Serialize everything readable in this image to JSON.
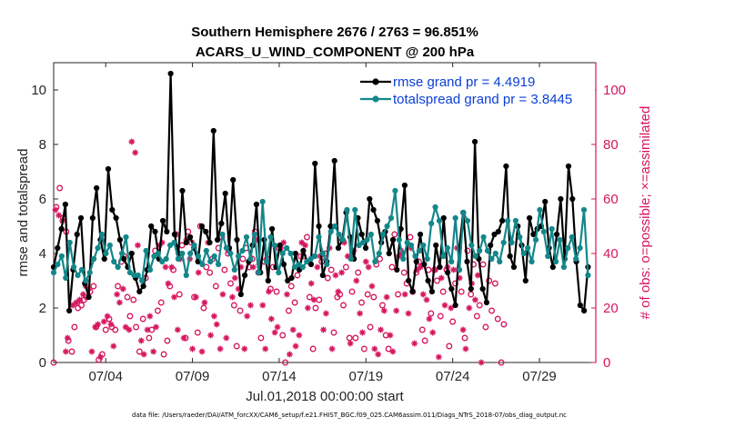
{
  "chart_data": {
    "type": "line",
    "title_line1": "Southern Hemisphere 2676 / 2763 = 96.851%",
    "title_line2": "ACARS_U_WIND_COMPONENT @ 200 hPa",
    "xlabel": "Jul.01,2018 00:00:00 start",
    "ylabel_left": "rmse and totalspread",
    "ylabel_right": "# of obs: o=possible; ×=assimilated",
    "x_tick_labels": [
      "07/04",
      "07/09",
      "07/14",
      "07/19",
      "07/24",
      "07/29"
    ],
    "x_tick_positions": [
      4,
      9,
      14,
      19,
      24,
      29
    ],
    "xlim": [
      1,
      32.25
    ],
    "ylim_left": [
      0,
      11
    ],
    "ylim_right": [
      0,
      110
    ],
    "y_ticks_left": [
      "0",
      "2",
      "4",
      "6",
      "8",
      "10"
    ],
    "y_ticks_right": [
      "0",
      "20",
      "40",
      "60",
      "80",
      "100"
    ],
    "grid": false,
    "legend": "top-right",
    "series": [
      {
        "name": "rmse grand pr = 4.4919",
        "color": "#000000",
        "axis": "left",
        "values": [
          3.5,
          4.2,
          4.9,
          5.8,
          1.9,
          3.4,
          4.7,
          5.3,
          2.9,
          2.4,
          5.3,
          6.4,
          4.5,
          3.8,
          7.1,
          5.6,
          5.3,
          4.5,
          3.8,
          3.5,
          4.0,
          3.1,
          2.6,
          2.8,
          3.4,
          5.0,
          4.8,
          3.8,
          5.2,
          4.8,
          10.6,
          4.7,
          4.0,
          6.3,
          4.4,
          4.6,
          4.2,
          3.7,
          5.0,
          4.8,
          4.4,
          8.5,
          4.5,
          5.1,
          6.2,
          4.2,
          6.7,
          4.5,
          2.5,
          3.2,
          3.7,
          4.3,
          5.8,
          3.3,
          4.5,
          3.0,
          4.9,
          3.5,
          4.3,
          3.6,
          3.0,
          3.1,
          4.0,
          3.4,
          4.1,
          3.7,
          3.6,
          7.3,
          5.0,
          3.2,
          3.7,
          5.0,
          7.4,
          4.2,
          4.5,
          5.5,
          4.6,
          3.8,
          5.3,
          4.7,
          4.2,
          6.0,
          5.6,
          5.2,
          4.4,
          4.8,
          4.0,
          4.5,
          3.4,
          4.9,
          6.5,
          3.0,
          2.6,
          3.7,
          4.7,
          3.6,
          3.0,
          2.6,
          4.3,
          3.5,
          5.3,
          3.3,
          2.7,
          2.1,
          4.2,
          5.5,
          3.7,
          2.7,
          8.1,
          3.8,
          2.7,
          2.2,
          4.3,
          4.7,
          4.8,
          5.2,
          7.2,
          3.9,
          3.5,
          5.0,
          4.3,
          3.0,
          5.3,
          4.7,
          4.9,
          5.0,
          5.9,
          4.2,
          3.5,
          4.7,
          6.0,
          3.8,
          7.2,
          6.0,
          3.7,
          2.1,
          1.9,
          3.5
        ],
        "marker": "filled-circle"
      },
      {
        "name": "totalspread grand pr = 3.8445",
        "color": "#13878a",
        "axis": "left",
        "values": [
          3.3,
          3.6,
          3.9,
          3.1,
          4.4,
          3.5,
          3.2,
          3.4,
          3.0,
          3.3,
          3.8,
          4.2,
          4.7,
          4.0,
          4.3,
          3.7,
          3.5,
          4.0,
          4.6,
          3.3,
          3.2,
          3.2,
          3.0,
          4.1,
          3.4,
          3.9,
          4.0,
          3.7,
          3.8,
          4.3,
          4.4,
          3.8,
          4.0,
          3.2,
          4.0,
          4.3,
          3.9,
          3.6,
          4.1,
          3.7,
          3.9,
          3.6,
          4.7,
          4.2,
          4.0,
          3.4,
          3.9,
          4.1,
          4.6,
          3.8,
          4.7,
          3.3,
          5.9,
          3.7,
          4.6,
          4.3,
          3.3,
          4.0,
          4.2,
          4.0,
          3.5,
          3.6,
          3.5,
          3.7,
          3.8,
          3.9,
          4.6,
          4.0,
          3.6,
          4.8,
          5.0,
          4.7,
          4.5,
          5.6,
          3.8,
          5.6,
          4.3,
          4.4,
          4.5,
          4.7,
          3.7,
          4.0,
          4.7,
          5.0,
          5.3,
          6.3,
          4.5,
          3.8,
          4.4,
          4.3,
          3.9,
          4.1,
          4.3,
          3.8,
          5.1,
          5.7,
          5.2,
          3.9,
          4.2,
          3.7,
          5.3,
          3.4,
          5.5,
          5.2,
          4.3,
          3.9,
          4.1,
          4.6,
          4.1,
          3.8,
          4.0,
          3.7,
          4.4,
          5.2,
          4.4,
          5.2,
          4.6,
          4.0,
          4.2,
          3.7,
          4.5,
          5.6,
          4.8,
          3.9,
          4.9,
          3.7,
          4.5,
          3.5,
          4.2,
          4.6,
          3.8,
          4.2,
          5.6,
          3.2
        ],
        "marker": "filled-circle"
      },
      {
        "name": "possible",
        "color": "#d6155e",
        "axis": "right",
        "marker": "open-circle",
        "values": [
          0,
          57,
          64,
          53,
          48,
          8,
          4,
          13,
          20,
          21,
          23,
          24,
          26,
          28,
          13,
          1,
          3,
          12,
          16,
          13,
          12,
          28,
          37,
          39,
          24,
          17,
          23,
          13,
          4,
          16,
          31,
          9,
          12,
          41,
          19,
          22,
          3,
          8,
          28,
          34,
          47,
          25,
          43,
          9,
          48,
          44,
          24,
          11,
          50,
          20,
          35,
          33,
          38,
          28,
          42,
          46,
          34,
          40,
          29,
          21,
          6,
          19,
          38,
          42,
          35,
          38,
          48,
          33,
          9,
          37,
          38,
          27,
          35,
          26,
          42,
          10,
          0,
          19,
          28,
          22,
          32,
          39,
          39,
          46,
          24,
          5,
          20,
          23,
          37,
          40,
          31,
          34,
          11,
          24,
          25,
          21,
          35,
          9,
          26,
          9,
          33,
          22,
          5,
          25,
          13,
          24,
          36,
          38,
          21,
          10,
          5,
          35,
          47,
          25,
          41,
          33,
          29,
          46,
          26,
          33,
          37,
          12,
          8,
          34,
          18,
          34,
          30,
          17,
          26,
          34,
          6,
          15,
          29,
          34,
          26,
          9,
          41,
          25,
          36,
          17,
          21,
          36,
          13,
          30,
          19,
          29,
          16,
          0,
          14
        ],
        "x_values": [
          1.0,
          1.15,
          1.35,
          1.55,
          1.73,
          1.85,
          2.05,
          2.2,
          2.4,
          2.6,
          2.75,
          2.9,
          3.1,
          3.3,
          3.45,
          3.6,
          3.8,
          4.0,
          4.2,
          4.35,
          4.55,
          4.7,
          4.9,
          5.05,
          5.25,
          5.4,
          5.6,
          5.75,
          5.95,
          6.15,
          6.3,
          6.5,
          6.65,
          6.85,
          7.0,
          7.2,
          7.35,
          7.55,
          7.7,
          7.9,
          8.05,
          8.25,
          8.4,
          8.6,
          8.75,
          8.95,
          9.1,
          9.3,
          9.45,
          9.65,
          9.8,
          10.0,
          10.15,
          10.35,
          10.5,
          10.7,
          10.85,
          11.05,
          11.2,
          11.4,
          11.55,
          11.75,
          11.9,
          12.1,
          12.25,
          12.45,
          12.6,
          12.8,
          12.95,
          13.15,
          13.3,
          13.5,
          13.65,
          13.85,
          14.0,
          14.2,
          14.35,
          14.55,
          14.7,
          14.9,
          15.05,
          15.25,
          15.4,
          15.6,
          15.75,
          15.95,
          16.1,
          16.3,
          16.45,
          16.65,
          16.8,
          17.0,
          17.15,
          17.35,
          17.5,
          17.7,
          17.85,
          18.05,
          18.2,
          18.4,
          18.55,
          18.75,
          18.9,
          19.1,
          19.25,
          19.45,
          19.6,
          19.8,
          19.95,
          20.15,
          20.3,
          20.5,
          20.65,
          20.85,
          21.0,
          21.2,
          21.35,
          21.55,
          21.7,
          21.9,
          22.05,
          22.25,
          22.4,
          22.6,
          22.75,
          22.95,
          23.1,
          23.3,
          23.45,
          23.65,
          23.8,
          24.0,
          24.15,
          24.35,
          24.5,
          24.7,
          24.85,
          25.05,
          25.2,
          25.4,
          25.55,
          25.75,
          25.9,
          26.1,
          26.25,
          26.45,
          26.6,
          26.8,
          26.95
        ]
      },
      {
        "name": "assimilated",
        "color": "#d6155e",
        "axis": "right",
        "marker": "star",
        "values": [
          56,
          54,
          52,
          4,
          9,
          21,
          22,
          23,
          25,
          28,
          27,
          4,
          13,
          14,
          2,
          15,
          17,
          14,
          6,
          25,
          22,
          27,
          13,
          12,
          81,
          77,
          43,
          8,
          3,
          12,
          17,
          4,
          13,
          43,
          44,
          35,
          29,
          35,
          24,
          12,
          38,
          9,
          45,
          38,
          5,
          24,
          33,
          4,
          22,
          44,
          10,
          17,
          14,
          5,
          25,
          9,
          41,
          24,
          31,
          27,
          35,
          5,
          17,
          21,
          35,
          45,
          36,
          21,
          5,
          26,
          16,
          11,
          13,
          42,
          44,
          25,
          3,
          12,
          6,
          10,
          44,
          43,
          20,
          29,
          23,
          35,
          39,
          12,
          18,
          42,
          5,
          32,
          26,
          33,
          44,
          39,
          7,
          41,
          30,
          18,
          11,
          37,
          35,
          28,
          5,
          3,
          12,
          19,
          24,
          10,
          4,
          19,
          39,
          40,
          25,
          18,
          42,
          7,
          34,
          35,
          25,
          23,
          16,
          11,
          34,
          2,
          31,
          21,
          35,
          20,
          34,
          42,
          31,
          12,
          5,
          20,
          29,
          23,
          32,
          0
        ],
        "x_values": [
          1.1,
          1.3,
          1.5,
          1.7,
          1.8,
          2.1,
          2.3,
          2.5,
          2.7,
          2.85,
          3.0,
          3.2,
          3.4,
          3.55,
          3.7,
          3.9,
          4.1,
          4.3,
          4.45,
          4.65,
          4.8,
          5.0,
          5.15,
          5.35,
          5.5,
          5.7,
          5.85,
          6.05,
          6.2,
          6.4,
          6.55,
          6.75,
          6.9,
          7.1,
          7.25,
          7.45,
          7.6,
          7.8,
          7.95,
          8.15,
          8.3,
          8.5,
          8.65,
          8.85,
          9.0,
          9.2,
          9.35,
          9.55,
          9.7,
          9.9,
          10.05,
          10.25,
          10.4,
          10.6,
          10.75,
          10.95,
          11.1,
          11.3,
          11.45,
          11.65,
          11.8,
          12.0,
          12.15,
          12.35,
          12.5,
          12.7,
          12.85,
          13.05,
          13.2,
          13.4,
          13.55,
          13.75,
          13.9,
          14.1,
          14.25,
          14.45,
          14.6,
          14.8,
          14.95,
          15.15,
          15.3,
          15.5,
          15.65,
          15.85,
          16.0,
          16.2,
          16.35,
          16.55,
          16.7,
          16.9,
          17.05,
          17.25,
          17.4,
          17.6,
          17.75,
          17.95,
          18.1,
          18.3,
          18.45,
          18.65,
          18.8,
          19.0,
          19.15,
          19.35,
          19.5,
          19.7,
          19.85,
          20.05,
          20.2,
          20.4,
          20.55,
          20.75,
          20.9,
          21.1,
          21.25,
          21.45,
          21.6,
          21.8,
          21.95,
          22.15,
          22.3,
          22.5,
          22.65,
          22.85,
          23.0,
          23.2,
          23.35,
          23.55,
          23.7,
          23.9,
          24.05,
          24.25,
          24.4,
          24.6,
          24.75,
          24.95,
          25.1,
          25.3,
          25.45,
          25.65
        ]
      }
    ]
  },
  "footer_text": "data file: /Users/raeder/DAI/ATM_forcXX/CAM6_setup/f.e21.FHIST_BGC.f09_025.CAM6assim.011/Diags_NTrS_2018-07/obs_diag_output.nc"
}
